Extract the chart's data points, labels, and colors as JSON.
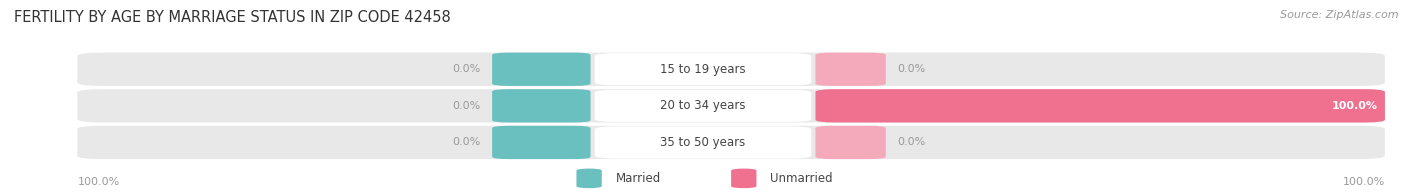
{
  "title": "FERTILITY BY AGE BY MARRIAGE STATUS IN ZIP CODE 42458",
  "source": "Source: ZipAtlas.com",
  "categories": [
    "15 to 19 years",
    "20 to 34 years",
    "35 to 50 years"
  ],
  "married_values": [
    0.0,
    0.0,
    0.0
  ],
  "unmarried_values": [
    0.0,
    100.0,
    0.0
  ],
  "bar_bg_color": "#e8e8e8",
  "married_color": "#6abfbf",
  "unmarried_color": "#f07090",
  "unmarried_small_color": "#f5aabb",
  "title_fontsize": 10.5,
  "source_fontsize": 8,
  "label_fontsize": 8,
  "category_fontsize": 8.5,
  "legend_fontsize": 8.5,
  "bg_color": "#ffffff",
  "text_color_dark": "#444444",
  "text_color_light": "#ffffff",
  "text_color_gray": "#999999",
  "footer_left_label": "100.0%",
  "footer_right_label": "100.0%"
}
